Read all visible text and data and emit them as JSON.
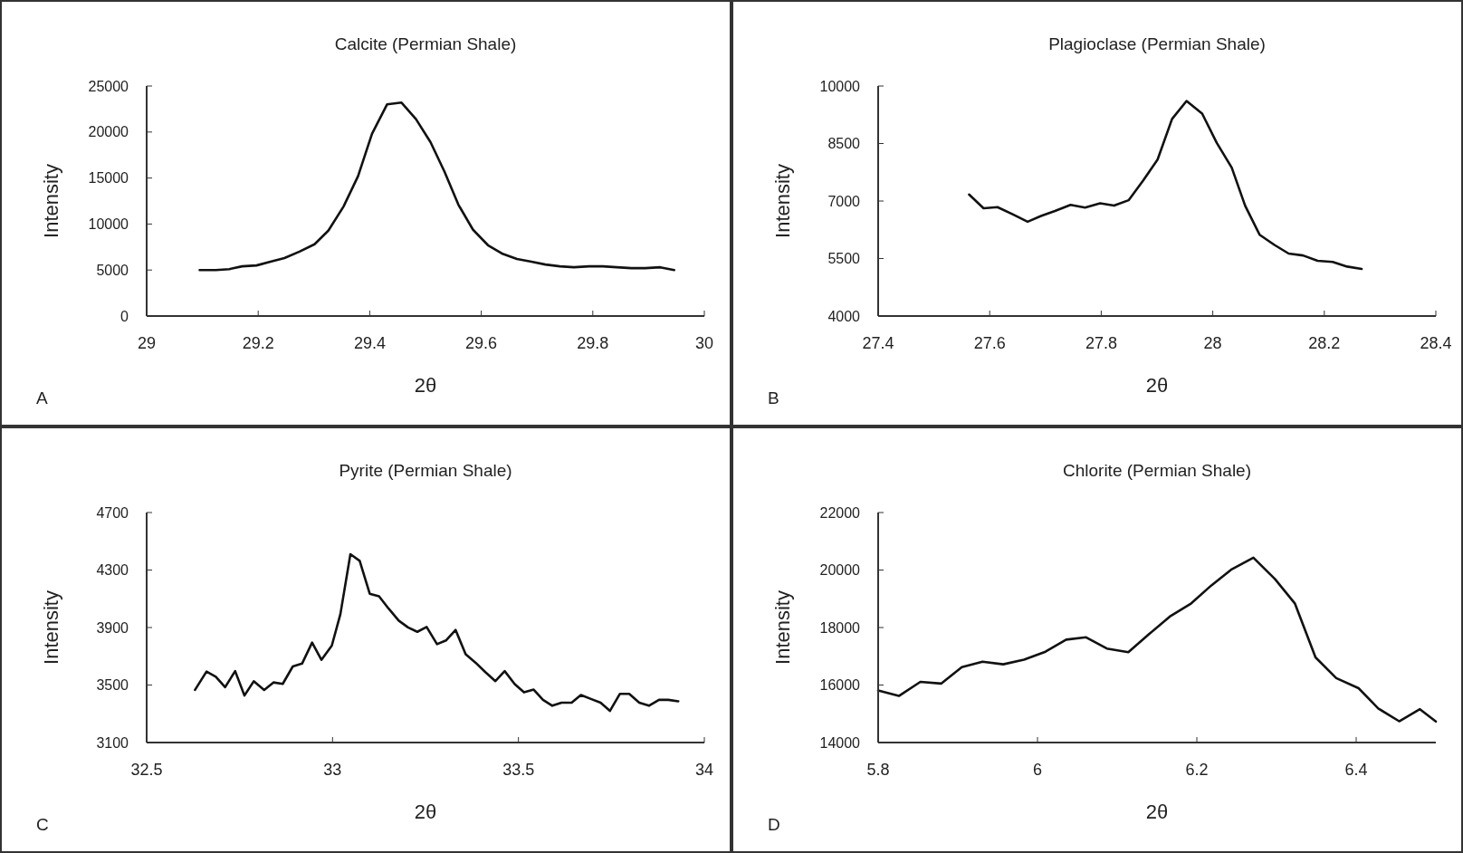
{
  "chart_data": [
    {
      "type": "line",
      "title": "Calcite (Permian Shale)",
      "xlabel": "2θ",
      "ylabel": "Intensity",
      "annotations": [
        "A"
      ],
      "xlim": [
        29,
        30
      ],
      "xticks": [
        29,
        29.2,
        29.4,
        29.6,
        29.8,
        30
      ],
      "ylim": [
        0,
        25000
      ],
      "yticks": [
        0,
        5000,
        10000,
        15000,
        20000,
        25000
      ],
      "grid": false,
      "marker": "none",
      "line_style": "solid",
      "series": [
        {
          "color": "#111111",
          "x": [
            29.095,
            29.124,
            29.148,
            29.171,
            29.197,
            29.222,
            29.247,
            29.274,
            29.301,
            29.326,
            29.353,
            29.379,
            29.404,
            29.431,
            29.457,
            29.483,
            29.509,
            29.534,
            29.559,
            29.585,
            29.612,
            29.637,
            29.664,
            29.69,
            29.715,
            29.741,
            29.766,
            29.793,
            29.818,
            29.843,
            29.869,
            29.894,
            29.921,
            29.946
          ],
          "values": [
            5000,
            5000,
            5100,
            5400,
            5500,
            5900,
            6300,
            7000,
            7800,
            9300,
            11900,
            15200,
            19800,
            23000,
            23200,
            21400,
            18900,
            15700,
            12100,
            9400,
            7700,
            6800,
            6200,
            5900,
            5600,
            5400,
            5300,
            5400,
            5400,
            5300,
            5200,
            5200,
            5300,
            5000
          ]
        }
      ]
    },
    {
      "type": "line",
      "title": "Plagioclase (Permian Shale)",
      "xlabel": "2θ",
      "ylabel": "Intensity",
      "annotations": [
        "B"
      ],
      "xlim": [
        27.4,
        28.4
      ],
      "xticks": [
        27.4,
        27.6,
        27.8,
        28,
        28.2,
        28.4
      ],
      "ylim": [
        4000,
        10000
      ],
      "yticks": [
        4000,
        5500,
        7000,
        8500,
        10000
      ],
      "grid": false,
      "marker": "none",
      "line_style": "solid",
      "series": [
        {
          "color": "#111111",
          "x": [
            27.563,
            27.589,
            27.614,
            27.642,
            27.668,
            27.692,
            27.717,
            27.745,
            27.771,
            27.798,
            27.823,
            27.849,
            27.875,
            27.901,
            27.927,
            27.953,
            27.981,
            28.007,
            28.034,
            28.058,
            28.084,
            28.11,
            28.136,
            28.162,
            28.188,
            28.215,
            28.241,
            28.267
          ],
          "values": [
            7170,
            6810,
            6840,
            6650,
            6460,
            6610,
            6740,
            6900,
            6830,
            6940,
            6880,
            7020,
            7530,
            8080,
            9140,
            9610,
            9280,
            8520,
            7870,
            6880,
            6120,
            5860,
            5630,
            5580,
            5440,
            5410,
            5290,
            5230
          ]
        }
      ]
    },
    {
      "type": "line",
      "title": "Pyrite (Permian Shale)",
      "xlabel": "2θ",
      "ylabel": "Intensity",
      "annotations": [
        "C"
      ],
      "xlim": [
        32.5,
        34
      ],
      "xticks": [
        32.5,
        33,
        33.5,
        34
      ],
      "ylim": [
        3100,
        4700
      ],
      "yticks": [
        3100,
        3500,
        3900,
        4300,
        4700
      ],
      "grid": false,
      "marker": "none",
      "line_style": "solid",
      "series": [
        {
          "color": "#111111",
          "x": [
            32.63,
            32.661,
            32.686,
            32.711,
            32.738,
            32.763,
            32.788,
            32.816,
            32.841,
            32.866,
            32.893,
            32.918,
            32.945,
            32.97,
            32.998,
            33.021,
            33.048,
            33.073,
            33.1,
            33.125,
            33.151,
            33.178,
            33.203,
            33.228,
            33.253,
            33.281,
            33.305,
            33.331,
            33.358,
            33.385,
            33.411,
            33.438,
            33.463,
            33.49,
            33.515,
            33.541,
            33.566,
            33.591,
            33.616,
            33.643,
            33.668,
            33.695,
            33.721,
            33.746,
            33.773,
            33.798,
            33.825,
            33.851,
            33.878,
            33.903,
            33.93
          ],
          "values": [
            3466,
            3594,
            3558,
            3485,
            3597,
            3427,
            3526,
            3466,
            3518,
            3508,
            3629,
            3649,
            3795,
            3675,
            3774,
            3992,
            4410,
            4364,
            4135,
            4117,
            4031,
            3948,
            3901,
            3870,
            3904,
            3784,
            3810,
            3883,
            3714,
            3655,
            3590,
            3527,
            3597,
            3506,
            3449,
            3468,
            3397,
            3356,
            3377,
            3377,
            3431,
            3403,
            3377,
            3320,
            3439,
            3439,
            3377,
            3356,
            3397,
            3397,
            3387
          ]
        }
      ]
    },
    {
      "type": "line",
      "title": "Chlorite (Permian Shale)",
      "xlabel": "2θ",
      "ylabel": "Intensity",
      "annotations": [
        "D"
      ],
      "xlim": [
        5.8,
        6.5
      ],
      "xticks": [
        5.8,
        6,
        6.2,
        6.4
      ],
      "ylim": [
        14000,
        22000
      ],
      "yticks": [
        14000,
        16000,
        18000,
        20000,
        22000
      ],
      "grid": false,
      "marker": "none",
      "line_style": "solid",
      "series": [
        {
          "color": "#111111",
          "x": [
            5.8,
            5.826,
            5.853,
            5.879,
            5.905,
            5.931,
            5.957,
            5.983,
            6.01,
            6.036,
            6.061,
            6.087,
            6.114,
            6.14,
            6.166,
            6.193,
            6.218,
            6.244,
            6.271,
            6.298,
            6.323,
            6.349,
            6.375,
            6.403,
            6.428,
            6.454,
            6.48,
            6.5
          ],
          "values": [
            15810,
            15620,
            16110,
            16050,
            16620,
            16810,
            16720,
            16880,
            17160,
            17580,
            17660,
            17270,
            17140,
            17770,
            18380,
            18840,
            19460,
            20030,
            20430,
            19690,
            18840,
            16960,
            16240,
            15890,
            15180,
            14740,
            15160,
            14730
          ]
        }
      ]
    }
  ]
}
